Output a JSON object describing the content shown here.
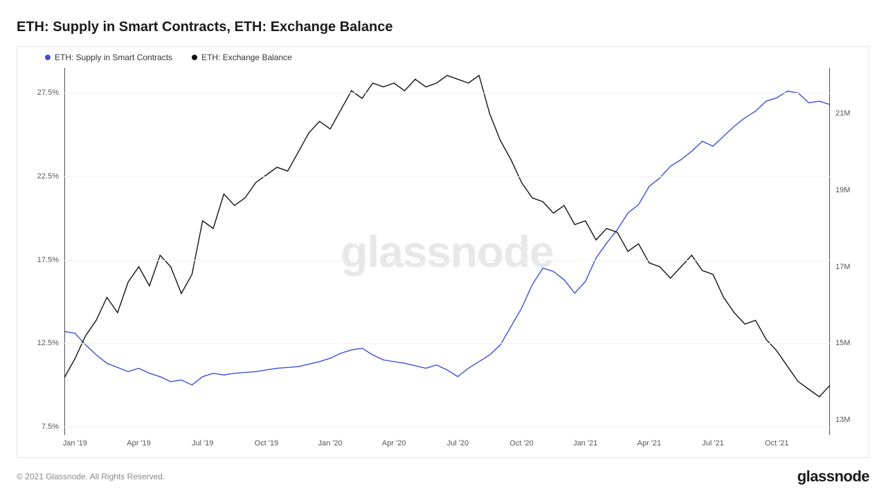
{
  "title": "ETH: Supply in Smart Contracts, ETH: Exchange Balance",
  "watermark": "glassnode",
  "copyright": "© 2021 Glassnode. All Rights Reserved.",
  "brand": "glassnode",
  "chart": {
    "type": "line",
    "background_color": "#ffffff",
    "border_color": "#e5e5e5",
    "grid_color": "#f0f0f0",
    "watermark_color": "#e8e8e8",
    "title_fontsize": 20,
    "axis_fontsize": 11,
    "legend_fontsize": 12,
    "line_width": 1.4,
    "legend": [
      {
        "label": "ETH: Supply in Smart Contracts",
        "color": "#3850d6"
      },
      {
        "label": "ETH: Exchange Balance",
        "color": "#111111"
      }
    ],
    "x_axis": {
      "ticks": [
        "Jan '19",
        "Apr '19",
        "Jul '19",
        "Oct '19",
        "Jan '20",
        "Apr '20",
        "Jul '20",
        "Oct '20",
        "Jan '21",
        "Apr '21",
        "Jul '21",
        "Oct '21"
      ],
      "domain": [
        0,
        36
      ]
    },
    "y_left": {
      "label_suffix": "%",
      "ticks": [
        7.5,
        12.5,
        17.5,
        22.5,
        27.5
      ],
      "domain": [
        7,
        29
      ]
    },
    "y_right": {
      "label_suffix": "M",
      "ticks": [
        13,
        15,
        17,
        19,
        21
      ],
      "domain": [
        12.6,
        22.2
      ]
    },
    "series": [
      {
        "name": "supply_in_smart_contracts",
        "axis": "left",
        "color": "#3850d6",
        "data": [
          [
            0,
            13.2
          ],
          [
            0.5,
            13.1
          ],
          [
            1,
            12.4
          ],
          [
            1.5,
            11.8
          ],
          [
            2,
            11.3
          ],
          [
            3,
            10.8
          ],
          [
            3.5,
            11.0
          ],
          [
            4,
            10.7
          ],
          [
            4.5,
            10.5
          ],
          [
            5,
            10.2
          ],
          [
            5.5,
            10.3
          ],
          [
            6,
            10.0
          ],
          [
            6.5,
            10.5
          ],
          [
            7,
            10.7
          ],
          [
            7.5,
            10.6
          ],
          [
            8,
            10.7
          ],
          [
            9,
            10.8
          ],
          [
            10,
            11.0
          ],
          [
            11,
            11.1
          ],
          [
            12,
            11.4
          ],
          [
            12.5,
            11.6
          ],
          [
            13,
            11.9
          ],
          [
            13.5,
            12.1
          ],
          [
            14,
            12.2
          ],
          [
            14.5,
            11.8
          ],
          [
            15,
            11.5
          ],
          [
            16,
            11.3
          ],
          [
            17,
            11.0
          ],
          [
            17.5,
            11.2
          ],
          [
            18,
            10.9
          ],
          [
            18.5,
            10.5
          ],
          [
            19,
            11.0
          ],
          [
            19.5,
            11.4
          ],
          [
            20,
            11.8
          ],
          [
            20.5,
            12.4
          ],
          [
            21,
            13.5
          ],
          [
            21.5,
            14.6
          ],
          [
            22,
            16.0
          ],
          [
            22.5,
            17.0
          ],
          [
            23,
            16.8
          ],
          [
            23.5,
            16.3
          ],
          [
            24,
            15.5
          ],
          [
            24.5,
            16.2
          ],
          [
            25,
            17.6
          ],
          [
            25.5,
            18.5
          ],
          [
            26,
            19.3
          ],
          [
            26.5,
            20.3
          ],
          [
            27,
            20.8
          ],
          [
            27.5,
            21.9
          ],
          [
            28,
            22.4
          ],
          [
            28.5,
            23.1
          ],
          [
            29,
            23.5
          ],
          [
            29.5,
            24.0
          ],
          [
            30,
            24.6
          ],
          [
            30.5,
            24.3
          ],
          [
            31,
            24.9
          ],
          [
            31.5,
            25.5
          ],
          [
            32,
            26.0
          ],
          [
            32.5,
            26.4
          ],
          [
            33,
            27.0
          ],
          [
            33.5,
            27.2
          ],
          [
            34,
            27.6
          ],
          [
            34.5,
            27.5
          ],
          [
            35,
            26.9
          ],
          [
            35.5,
            27.0
          ],
          [
            36,
            26.8
          ]
        ]
      },
      {
        "name": "exchange_balance",
        "axis": "right",
        "color": "#111111",
        "data": [
          [
            0,
            14.1
          ],
          [
            0.5,
            14.6
          ],
          [
            1,
            15.2
          ],
          [
            1.5,
            15.6
          ],
          [
            2,
            16.2
          ],
          [
            2.5,
            15.8
          ],
          [
            3,
            16.6
          ],
          [
            3.5,
            17.0
          ],
          [
            4,
            16.5
          ],
          [
            4.5,
            17.3
          ],
          [
            5,
            17.0
          ],
          [
            5.5,
            16.3
          ],
          [
            6,
            16.8
          ],
          [
            6.5,
            18.2
          ],
          [
            7,
            18.0
          ],
          [
            7.5,
            18.9
          ],
          [
            8,
            18.6
          ],
          [
            8.5,
            18.8
          ],
          [
            9,
            19.2
          ],
          [
            9.5,
            19.4
          ],
          [
            10,
            19.6
          ],
          [
            10.5,
            19.5
          ],
          [
            11,
            20.0
          ],
          [
            11.5,
            20.5
          ],
          [
            12,
            20.8
          ],
          [
            12.5,
            20.6
          ],
          [
            13,
            21.1
          ],
          [
            13.5,
            21.6
          ],
          [
            14,
            21.4
          ],
          [
            14.5,
            21.8
          ],
          [
            15,
            21.7
          ],
          [
            15.5,
            21.8
          ],
          [
            16,
            21.6
          ],
          [
            16.5,
            21.9
          ],
          [
            17,
            21.7
          ],
          [
            17.5,
            21.8
          ],
          [
            18,
            22.0
          ],
          [
            18.5,
            21.9
          ],
          [
            19,
            21.8
          ],
          [
            19.5,
            22.0
          ],
          [
            20,
            21.0
          ],
          [
            20.5,
            20.3
          ],
          [
            21,
            19.8
          ],
          [
            21.5,
            19.2
          ],
          [
            22,
            18.8
          ],
          [
            22.5,
            18.7
          ],
          [
            23,
            18.4
          ],
          [
            23.5,
            18.6
          ],
          [
            24,
            18.1
          ],
          [
            24.5,
            18.2
          ],
          [
            25,
            17.7
          ],
          [
            25.5,
            18.0
          ],
          [
            26,
            17.9
          ],
          [
            26.5,
            17.4
          ],
          [
            27,
            17.6
          ],
          [
            27.5,
            17.1
          ],
          [
            28,
            17.0
          ],
          [
            28.5,
            16.7
          ],
          [
            29,
            17.0
          ],
          [
            29.5,
            17.3
          ],
          [
            30,
            16.9
          ],
          [
            30.5,
            16.8
          ],
          [
            31,
            16.2
          ],
          [
            31.5,
            15.8
          ],
          [
            32,
            15.5
          ],
          [
            32.5,
            15.6
          ],
          [
            33,
            15.1
          ],
          [
            33.5,
            14.8
          ],
          [
            34,
            14.4
          ],
          [
            34.5,
            14.0
          ],
          [
            35,
            13.8
          ],
          [
            35.5,
            13.6
          ],
          [
            36,
            13.9
          ]
        ]
      }
    ]
  }
}
